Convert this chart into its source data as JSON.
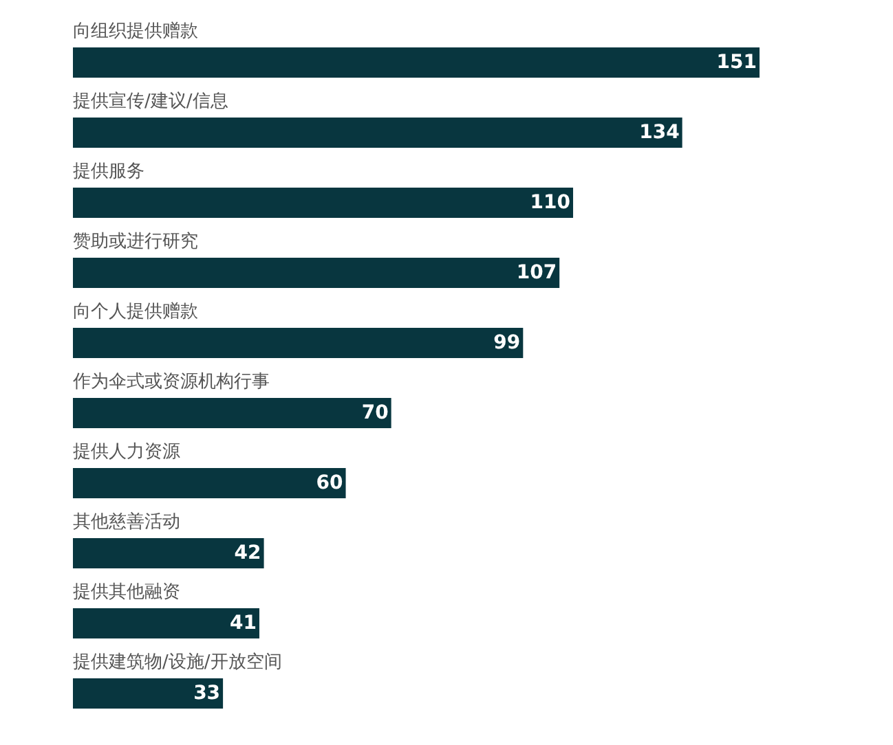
{
  "chart_data": {
    "type": "bar",
    "orientation": "horizontal",
    "categories": [
      "向组织提供赠款",
      "提供宣传/建议/信息",
      "提供服务",
      "赞助或进行研究",
      "向个人提供赠款",
      "作为伞式或资源机构行事",
      "提供人力资源",
      "其他慈善活动",
      "提供其他融资",
      "提供建筑物/设施/开放空间"
    ],
    "values": [
      151,
      134,
      110,
      107,
      99,
      70,
      60,
      42,
      41,
      33
    ],
    "color": "#08363f",
    "data_labels": true
  }
}
